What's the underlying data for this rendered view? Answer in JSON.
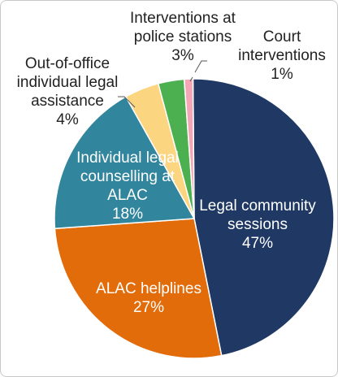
{
  "chart_data": {
    "type": "pie",
    "title": "",
    "slices": [
      {
        "lines": [
          "Legal community",
          "sessions",
          "47%"
        ],
        "value": 47,
        "color": "#1f3864",
        "label_color": "#ffffff"
      },
      {
        "lines": [
          "ALAC helplines",
          "27%"
        ],
        "value": 27,
        "color": "#e36c0a",
        "label_color": "#ffffff"
      },
      {
        "lines": [
          "Individual legal",
          "counselling at",
          "ALAC",
          "18%"
        ],
        "value": 18,
        "color": "#31859c",
        "label_color": "#ffffff"
      },
      {
        "lines": [
          "Out-of-office",
          "individual legal",
          "assistance",
          "4%"
        ],
        "value": 4,
        "color": "#fcd581",
        "label_color": "#222222"
      },
      {
        "lines": [
          "Interventions at",
          "police stations",
          "3%"
        ],
        "value": 3,
        "color": "#4caf50",
        "label_color": "#222222"
      },
      {
        "lines": [
          "Court",
          "interventions",
          "1%"
        ],
        "value": 1,
        "color": "#f4a6b7",
        "label_color": "#222222"
      }
    ],
    "legend": "none"
  }
}
